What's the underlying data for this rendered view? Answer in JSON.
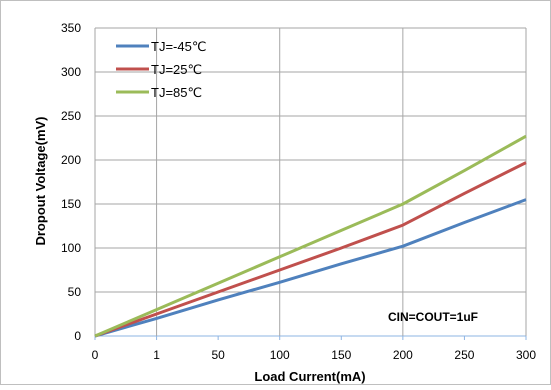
{
  "chart_data": {
    "type": "line",
    "xlabel": "Load Current(mA)",
    "ylabel": "Dropout Voltage(mV)",
    "x_tick_labels": [
      "0",
      "1",
      "50",
      "100",
      "150",
      "200",
      "250",
      "300"
    ],
    "y_tick_labels": [
      "0",
      "50",
      "100",
      "150",
      "200",
      "250",
      "300",
      "350"
    ],
    "ylim": [
      0,
      350
    ],
    "grid": "major x and y",
    "legend_position": "top-left",
    "annotation": "CIN=COUT=1uF",
    "x": [
      0,
      1,
      50,
      100,
      150,
      200,
      250,
      300
    ],
    "series": [
      {
        "name": "TJ=-45℃",
        "color": "#4f81bd",
        "values": [
          0,
          20,
          41,
          61,
          82,
          102,
          129,
          155
        ]
      },
      {
        "name": "TJ=25℃",
        "color": "#c0504d",
        "values": [
          0,
          25,
          50,
          75,
          100,
          126,
          162,
          197
        ]
      },
      {
        "name": "TJ=85℃",
        "color": "#9bbb59",
        "values": [
          0,
          30,
          60,
          90,
          120,
          150,
          188,
          227
        ]
      }
    ]
  }
}
